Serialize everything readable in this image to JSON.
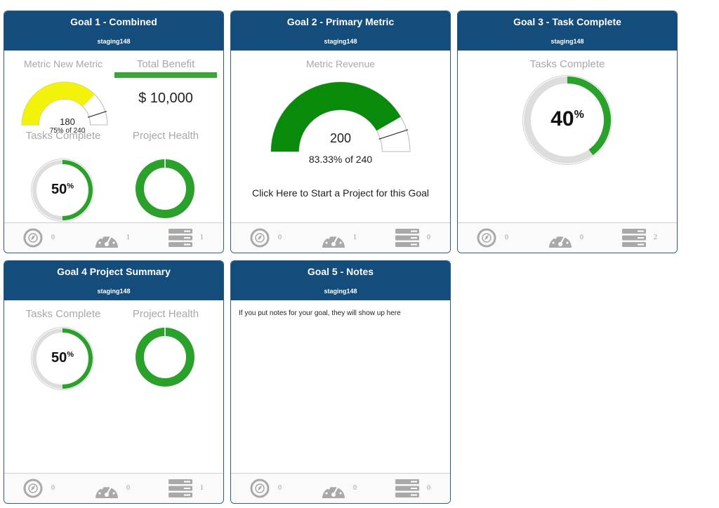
{
  "colors": {
    "header_bg": "#144c7b",
    "gauge_yellow": "#f2f20a",
    "gauge_green": "#0a8a0a",
    "ring_green": "#2aa12a",
    "ring_grey": "#dddddd",
    "benefit_bar": "#36a836",
    "icon_grey": "#a9a9a9"
  },
  "footer_icons": [
    "compass-icon",
    "speedometer-icon",
    "server-stack-icon"
  ],
  "cards": [
    {
      "title": "Goal 1 - Combined",
      "subtitle": "staging148",
      "metric": {
        "label": "Metric New Metric",
        "value": "180",
        "pct_text": "75% of 240",
        "fraction": 0.75
      },
      "benefit": {
        "label": "Total Benefit",
        "value": "$ 10,000"
      },
      "tasks": {
        "label": "Tasks Complete",
        "pct": "50",
        "symbol": "%",
        "fraction": 0.5
      },
      "health": {
        "label": "Project Health",
        "fraction": 1.0
      },
      "footer": {
        "compass": "0",
        "gauge": "1",
        "stack": "1"
      }
    },
    {
      "title": "Goal 2 - Primary Metric",
      "subtitle": "staging148",
      "metric": {
        "label": "Metric Revenue",
        "value": "200",
        "pct_text": "83.33% of 240",
        "fraction": 0.8333
      },
      "link": "Click Here to Start a Project for this Goal",
      "footer": {
        "compass": "0",
        "gauge": "1",
        "stack": "0"
      }
    },
    {
      "title": "Goal 3 - Task Complete",
      "subtitle": "staging148",
      "tasks": {
        "label": "Tasks Complete",
        "pct": "40",
        "symbol": "%",
        "fraction": 0.4
      },
      "footer": {
        "compass": "0",
        "gauge": "0",
        "stack": "2"
      }
    },
    {
      "title": "Goal 4 Project Summary",
      "subtitle": "staging148",
      "tasks": {
        "label": "Tasks Complete",
        "pct": "50",
        "symbol": "%",
        "fraction": 0.5
      },
      "health": {
        "label": "Project Health",
        "fraction": 1.0
      },
      "footer": {
        "compass": "0",
        "gauge": "0",
        "stack": "1"
      }
    },
    {
      "title": "Goal 5 - Notes",
      "subtitle": "staging148",
      "notes": "If you put notes for your goal, they will show up here",
      "footer": {
        "compass": "0",
        "gauge": "0",
        "stack": "0"
      }
    }
  ]
}
